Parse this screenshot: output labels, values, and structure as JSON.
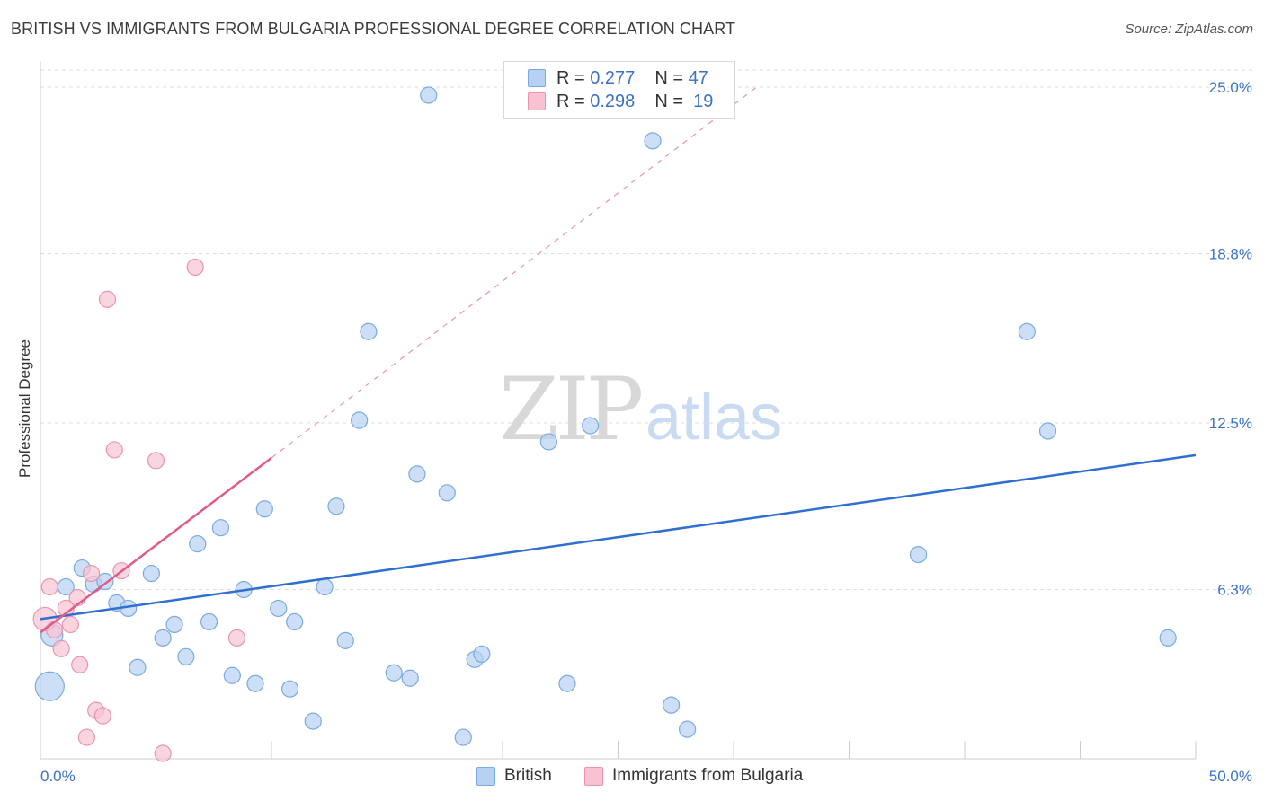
{
  "title": "BRITISH VS IMMIGRANTS FROM BULGARIA PROFESSIONAL DEGREE CORRELATION CHART",
  "source": "Source: ZipAtlas.com",
  "watermark": {
    "zip": "ZIP",
    "atlas": "atlas"
  },
  "legend_stats": [
    {
      "r_label": "R =",
      "r_value": "0.277",
      "n_label": "N =",
      "n_value": "47"
    },
    {
      "r_label": "R =",
      "r_value": "0.298",
      "n_label": "N =",
      "n_value": "19"
    }
  ],
  "colors": {
    "british_fill": "#b7d1f2",
    "british_stroke": "#7aaae0",
    "british_line": "#2f6fd0",
    "bulgaria_fill": "#f7c3d2",
    "bulgaria_stroke": "#ea94ae",
    "bulgaria_line": "#e05a8a",
    "axis_text": "#3a72c8",
    "grid": "#dddddd"
  },
  "chart_data": {
    "type": "scatter",
    "ylabel": "Professional Degree",
    "xlim": [
      0,
      50
    ],
    "ylim": [
      0,
      25
    ],
    "x_tick_labels": [
      "0.0%",
      "50.0%"
    ],
    "y_ticks": [
      6.3,
      12.5,
      18.8,
      25.0
    ],
    "y_tick_labels": [
      "6.3%",
      "12.5%",
      "18.8%",
      "25.0%"
    ],
    "grid": true,
    "legend_position": "top-center",
    "series": [
      {
        "name": "British",
        "trend": {
          "x0": 0,
          "y0": 5.2,
          "x1": 50,
          "y1": 11.3
        },
        "points": [
          [
            0.4,
            2.7,
            16
          ],
          [
            1.1,
            6.4,
            9
          ],
          [
            1.8,
            7.1,
            9
          ],
          [
            2.3,
            6.5,
            9
          ],
          [
            2.8,
            6.6,
            9
          ],
          [
            3.3,
            5.8,
            9
          ],
          [
            3.8,
            5.6,
            9
          ],
          [
            4.2,
            3.4,
            9
          ],
          [
            4.8,
            6.9,
            9
          ],
          [
            5.3,
            4.5,
            9
          ],
          [
            5.8,
            5.0,
            9
          ],
          [
            6.3,
            3.8,
            9
          ],
          [
            6.8,
            8.0,
            9
          ],
          [
            7.3,
            5.1,
            9
          ],
          [
            7.8,
            8.6,
            9
          ],
          [
            8.3,
            3.1,
            9
          ],
          [
            8.8,
            6.3,
            9
          ],
          [
            9.3,
            2.8,
            9
          ],
          [
            9.7,
            9.3,
            9
          ],
          [
            10.3,
            5.6,
            9
          ],
          [
            10.8,
            2.6,
            9
          ],
          [
            11.0,
            5.1,
            9
          ],
          [
            11.8,
            1.4,
            9
          ],
          [
            12.3,
            6.4,
            9
          ],
          [
            12.8,
            9.4,
            9
          ],
          [
            13.2,
            4.4,
            9
          ],
          [
            13.8,
            12.6,
            9
          ],
          [
            14.2,
            15.9,
            9
          ],
          [
            15.3,
            3.2,
            9
          ],
          [
            16.0,
            3.0,
            9
          ],
          [
            16.3,
            10.6,
            9
          ],
          [
            16.8,
            24.7,
            9
          ],
          [
            17.6,
            9.9,
            9
          ],
          [
            18.3,
            0.8,
            9
          ],
          [
            18.8,
            3.7,
            9
          ],
          [
            19.1,
            3.9,
            9
          ],
          [
            22.0,
            11.8,
            9
          ],
          [
            22.8,
            2.8,
            9
          ],
          [
            23.8,
            12.4,
            9
          ],
          [
            26.5,
            23.0,
            9
          ],
          [
            27.3,
            2.0,
            9
          ],
          [
            28.0,
            1.1,
            9
          ],
          [
            38.0,
            7.6,
            9
          ],
          [
            42.7,
            15.9,
            9
          ],
          [
            43.6,
            12.2,
            9
          ],
          [
            48.8,
            4.5,
            9
          ],
          [
            0.5,
            4.6,
            12
          ]
        ]
      },
      {
        "name": "Immigrants from Bulgaria",
        "trend": {
          "x0": 0,
          "y0": 4.7,
          "x1": 10,
          "y1": 11.2
        },
        "trend_ext": {
          "x0": 10,
          "y0": 11.2,
          "x1": 31,
          "y1": 25.0
        },
        "points": [
          [
            0.2,
            5.2,
            13
          ],
          [
            0.4,
            6.4,
            9
          ],
          [
            0.6,
            4.8,
            9
          ],
          [
            0.9,
            4.1,
            9
          ],
          [
            1.1,
            5.6,
            9
          ],
          [
            1.3,
            5.0,
            9
          ],
          [
            1.6,
            6.0,
            9
          ],
          [
            1.7,
            3.5,
            9
          ],
          [
            2.0,
            0.8,
            9
          ],
          [
            2.2,
            6.9,
            9
          ],
          [
            2.4,
            1.8,
            9
          ],
          [
            2.7,
            1.6,
            9
          ],
          [
            2.9,
            17.1,
            9
          ],
          [
            3.2,
            11.5,
            9
          ],
          [
            3.5,
            7.0,
            9
          ],
          [
            5.0,
            11.1,
            9
          ],
          [
            5.3,
            0.2,
            9
          ],
          [
            6.7,
            18.3,
            9
          ],
          [
            8.5,
            4.5,
            9
          ]
        ]
      }
    ]
  },
  "bottom_legend": [
    "British",
    "Immigrants from Bulgaria"
  ]
}
